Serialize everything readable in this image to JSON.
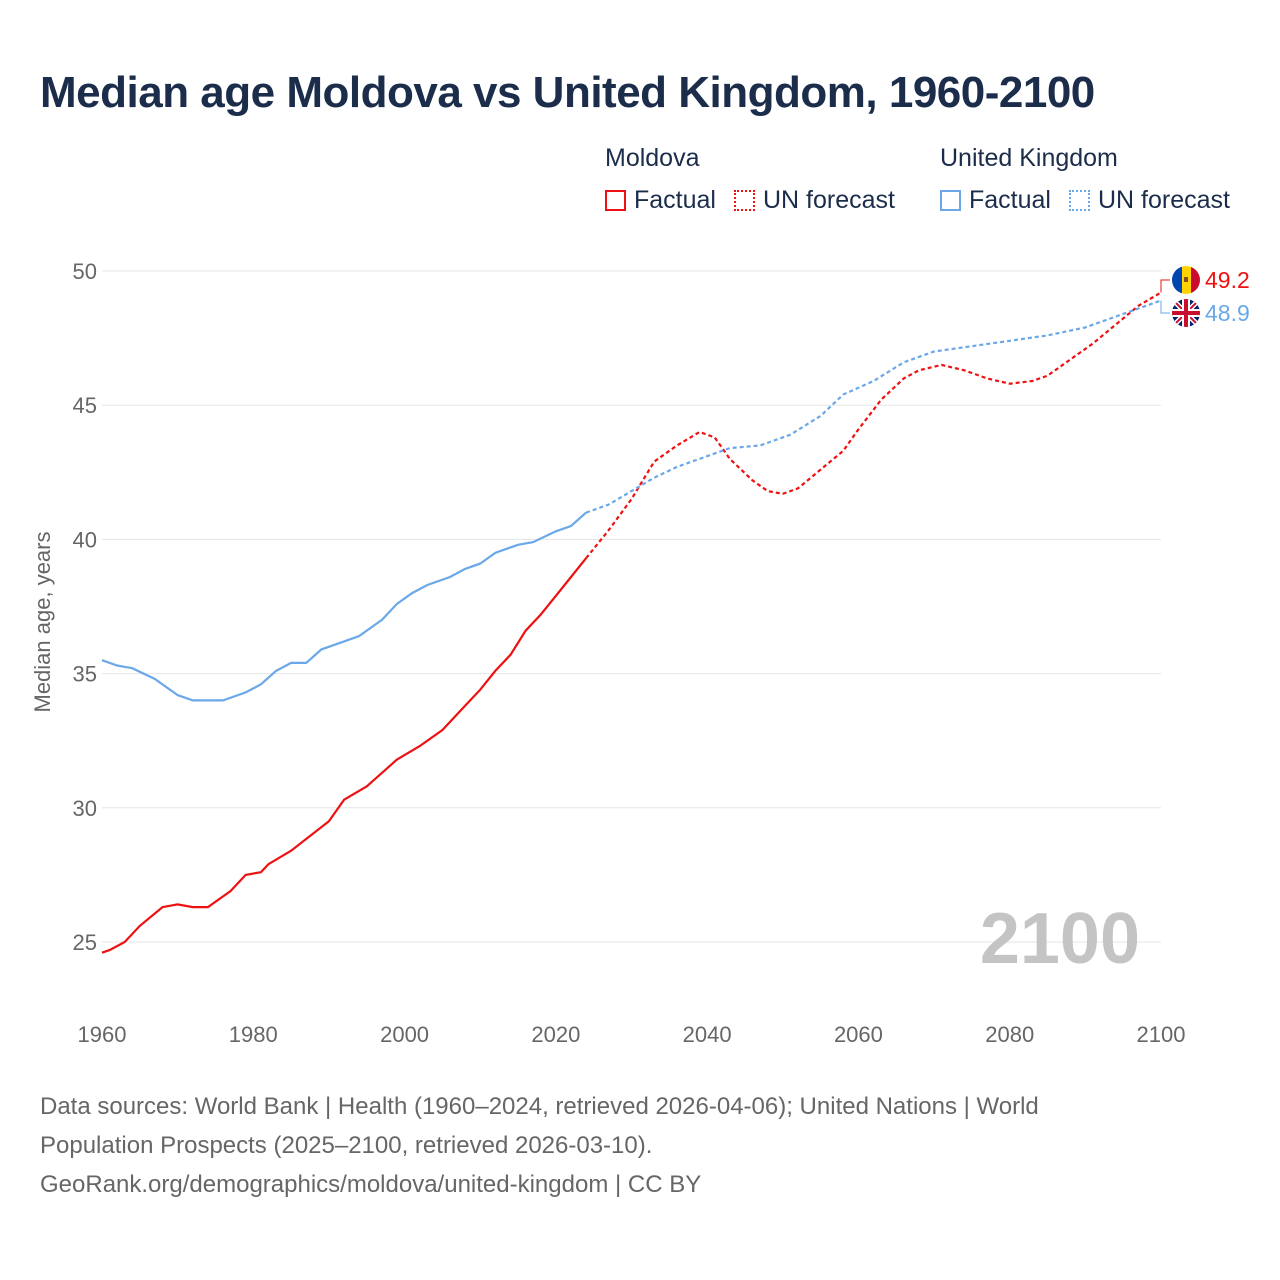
{
  "chart_data": {
    "type": "line",
    "title": "Median age Moldova vs United Kingdom, 1960-2100",
    "ylabel": "Median age, years",
    "xlabel": "",
    "xlim": [
      1960,
      2100
    ],
    "ylim": [
      23.5,
      50.5
    ],
    "x_ticks": [
      1960,
      1980,
      2000,
      2020,
      2040,
      2060,
      2080,
      2100
    ],
    "y_ticks": [
      25,
      30,
      35,
      40,
      45,
      50
    ],
    "grid": "horizontal",
    "legend_position": "top-right",
    "year_watermark": "2100",
    "legend": {
      "groups": [
        {
          "name": "Moldova",
          "factual": "Factual",
          "forecast": "UN forecast",
          "color": "#ee1111"
        },
        {
          "name": "United Kingdom",
          "factual": "Factual",
          "forecast": "UN forecast",
          "color": "#6aa8e8"
        }
      ]
    },
    "series": [
      {
        "name": "Moldova",
        "color": "#ee1111",
        "end_label": "49.2",
        "factual": [
          [
            1960,
            24.6
          ],
          [
            1961,
            24.7
          ],
          [
            1963,
            25.0
          ],
          [
            1965,
            25.6
          ],
          [
            1968,
            26.3
          ],
          [
            1970,
            26.4
          ],
          [
            1972,
            26.3
          ],
          [
            1974,
            26.3
          ],
          [
            1977,
            26.9
          ],
          [
            1979,
            27.5
          ],
          [
            1981,
            27.6
          ],
          [
            1982,
            27.9
          ],
          [
            1985,
            28.4
          ],
          [
            1990,
            29.5
          ],
          [
            1992,
            30.3
          ],
          [
            1995,
            30.8
          ],
          [
            1997,
            31.3
          ],
          [
            1999,
            31.8
          ],
          [
            2002,
            32.3
          ],
          [
            2005,
            32.9
          ],
          [
            2008,
            33.8
          ],
          [
            2010,
            34.4
          ],
          [
            2012,
            35.1
          ],
          [
            2014,
            35.7
          ],
          [
            2016,
            36.6
          ],
          [
            2018,
            37.2
          ],
          [
            2020,
            37.9
          ],
          [
            2022,
            38.6
          ],
          [
            2024,
            39.3
          ]
        ],
        "forecast": [
          [
            2024,
            39.3
          ],
          [
            2027,
            40.35
          ],
          [
            2030,
            41.5
          ],
          [
            2033,
            42.9
          ],
          [
            2036,
            43.5
          ],
          [
            2039,
            44.0
          ],
          [
            2041,
            43.8
          ],
          [
            2043,
            43.0
          ],
          [
            2046,
            42.2
          ],
          [
            2048,
            41.8
          ],
          [
            2050,
            41.7
          ],
          [
            2052,
            41.9
          ],
          [
            2055,
            42.6
          ],
          [
            2058,
            43.3
          ],
          [
            2060,
            44.1
          ],
          [
            2063,
            45.2
          ],
          [
            2066,
            46.0
          ],
          [
            2068,
            46.3
          ],
          [
            2071,
            46.5
          ],
          [
            2074,
            46.3
          ],
          [
            2077,
            46.0
          ],
          [
            2080,
            45.8
          ],
          [
            2083,
            45.9
          ],
          [
            2085,
            46.1
          ],
          [
            2088,
            46.7
          ],
          [
            2091,
            47.3
          ],
          [
            2094,
            48.0
          ],
          [
            2097,
            48.7
          ],
          [
            2100,
            49.2
          ]
        ]
      },
      {
        "name": "United Kingdom",
        "color": "#6aa8e8",
        "end_label": "48.9",
        "factual": [
          [
            1960,
            35.5
          ],
          [
            1962,
            35.3
          ],
          [
            1964,
            35.2
          ],
          [
            1967,
            34.8
          ],
          [
            1970,
            34.2
          ],
          [
            1972,
            34.0
          ],
          [
            1976,
            34.0
          ],
          [
            1979,
            34.3
          ],
          [
            1981,
            34.6
          ],
          [
            1983,
            35.1
          ],
          [
            1985,
            35.4
          ],
          [
            1987,
            35.4
          ],
          [
            1989,
            35.9
          ],
          [
            1992,
            36.2
          ],
          [
            1994,
            36.4
          ],
          [
            1997,
            37.0
          ],
          [
            1999,
            37.6
          ],
          [
            2001,
            38.0
          ],
          [
            2003,
            38.3
          ],
          [
            2006,
            38.6
          ],
          [
            2008,
            38.9
          ],
          [
            2010,
            39.1
          ],
          [
            2012,
            39.5
          ],
          [
            2015,
            39.8
          ],
          [
            2017,
            39.9
          ],
          [
            2020,
            40.3
          ],
          [
            2022,
            40.5
          ],
          [
            2024,
            41.0
          ]
        ],
        "forecast": [
          [
            2024,
            41.0
          ],
          [
            2027,
            41.3
          ],
          [
            2030,
            41.8
          ],
          [
            2033,
            42.3
          ],
          [
            2036,
            42.7
          ],
          [
            2040,
            43.1
          ],
          [
            2043,
            43.4
          ],
          [
            2047,
            43.5
          ],
          [
            2051,
            43.9
          ],
          [
            2055,
            44.6
          ],
          [
            2058,
            45.4
          ],
          [
            2062,
            45.9
          ],
          [
            2066,
            46.6
          ],
          [
            2070,
            47.0
          ],
          [
            2075,
            47.2
          ],
          [
            2080,
            47.4
          ],
          [
            2085,
            47.6
          ],
          [
            2090,
            47.9
          ],
          [
            2095,
            48.4
          ],
          [
            2100,
            48.9
          ]
        ]
      }
    ]
  },
  "footer": {
    "line1": "Data sources: World Bank | Health (1960–2024, retrieved 2026-04-06); United Nations | World",
    "line2": "Population Prospects (2025–2100, retrieved 2026-03-10).",
    "line3": "GeoRank.org/demographics/moldova/united-kingdom | CC BY"
  }
}
